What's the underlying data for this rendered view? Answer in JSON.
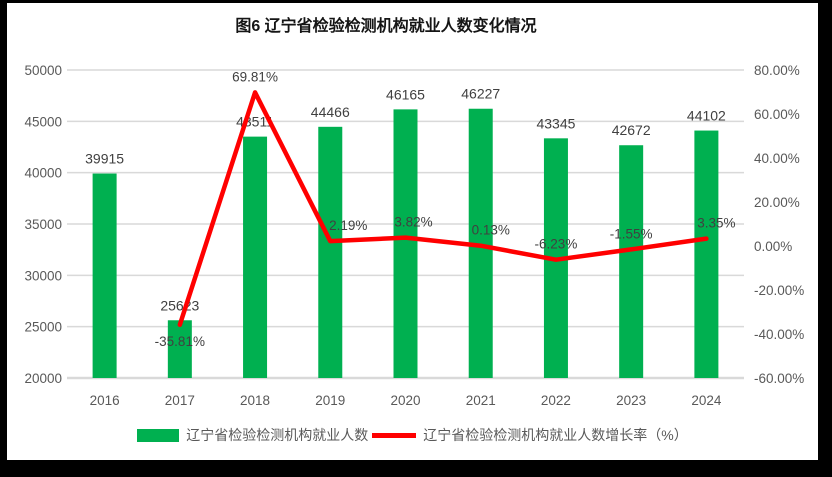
{
  "title": "图6 辽宁省检验检测机构就业人数变化情况",
  "colors": {
    "bar_green": "#00B050",
    "line_red": "#FF0000",
    "gridline": "#D9D9D9",
    "axis_line": "#C6C6C6",
    "tick_text": "#595959",
    "data_label_text": "#404040",
    "frame_black": "#000000",
    "panel_white": "#ffffff"
  },
  "chart_data": {
    "type": "bar",
    "combo": "bar+line",
    "title": "图6 辽宁省检验检测机构就业人数变化情况",
    "categories": [
      "2016",
      "2017",
      "2018",
      "2019",
      "2020",
      "2021",
      "2022",
      "2023",
      "2024"
    ],
    "series": [
      {
        "name": "辽宁省检验检测机构就业人数",
        "type": "bar",
        "axis": "left",
        "color": "#00B050",
        "values": [
          39915,
          25623,
          43511,
          44466,
          46165,
          46227,
          43345,
          42672,
          44102
        ],
        "data_labels": [
          "39915",
          "25623",
          "43511",
          "44466",
          "46165",
          "46227",
          "43345",
          "42672",
          "44102"
        ]
      },
      {
        "name": "辽宁省检验检测机构就业人数增长率（%）",
        "type": "line",
        "axis": "right",
        "color": "#FF0000",
        "values": [
          null,
          -35.81,
          69.81,
          2.19,
          3.82,
          0.13,
          -6.23,
          -1.55,
          3.35
        ],
        "data_labels": [
          "",
          "-35.81%",
          "69.81%",
          "2.19%",
          "3.82%",
          "0.13%",
          "-6.23%",
          "-1.55%",
          "3.35%"
        ]
      }
    ],
    "left_axis": {
      "min": 20000,
      "max": 50000,
      "step": 5000,
      "tick_labels": [
        "50000",
        "45000",
        "40000",
        "35000",
        "30000",
        "25000",
        "20000"
      ]
    },
    "right_axis": {
      "min": -60,
      "max": 80,
      "step": 20,
      "tick_labels": [
        "80.00%",
        "60.00%",
        "40.00%",
        "20.00%",
        "0.00%",
        "-20.00%",
        "-40.00%",
        "-60.00%"
      ]
    },
    "grid": true,
    "legend_position": "bottom",
    "xlabel": "",
    "ylabel": ""
  }
}
